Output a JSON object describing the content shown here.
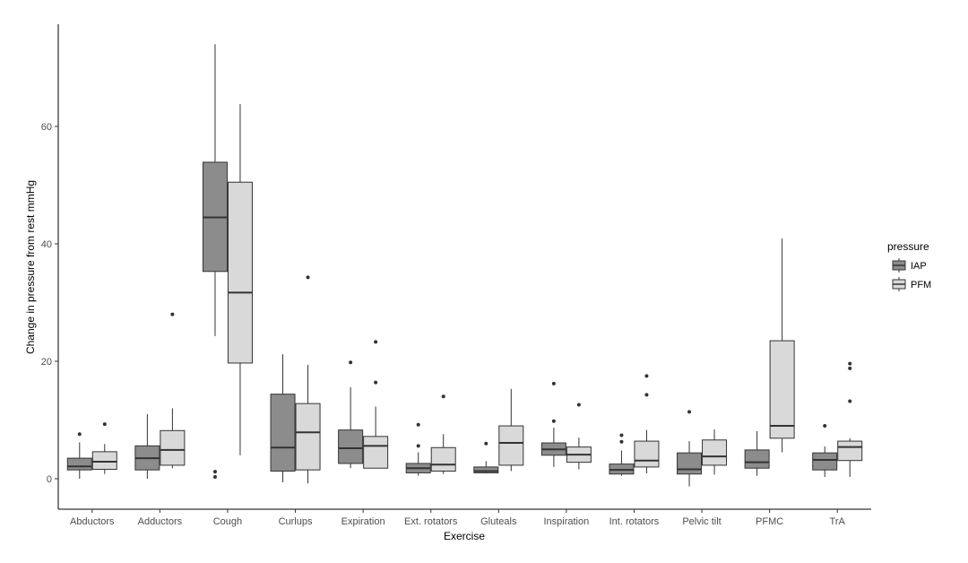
{
  "chart_data": {
    "type": "boxplot",
    "xlabel": "Exercise",
    "ylabel": "Change in pressure from rest mmHg",
    "ylim": [
      -5,
      78
    ],
    "yticks": [
      0,
      20,
      40,
      60
    ],
    "grid": false,
    "legend": {
      "title": "pressure",
      "position": "right"
    },
    "categories": [
      "Abductors",
      "Adductors",
      "Cough",
      "Curlups",
      "Expiration",
      "Ext. rotators",
      "Gluteals",
      "Inspiration",
      "Int. rotators",
      "Pelvic tilt",
      "PFMC",
      "TrA"
    ],
    "series": [
      {
        "name": "IAP",
        "color": "#8c8c8c",
        "boxes": [
          {
            "whisker_low": 0,
            "q1": 1.5,
            "median": 2.1,
            "q3": 3.5,
            "whisker_high": 6.2,
            "outliers": [
              7.6
            ]
          },
          {
            "whisker_low": 0,
            "q1": 1.5,
            "median": 3.5,
            "q3": 5.6,
            "whisker_high": 11.0,
            "outliers": []
          },
          {
            "whisker_low": 24.3,
            "q1": 35.3,
            "median": 44.5,
            "q3": 53.9,
            "whisker_high": 74.0,
            "outliers": [
              1.2,
              0.3
            ]
          },
          {
            "whisker_low": -0.6,
            "q1": 1.3,
            "median": 5.3,
            "q3": 14.4,
            "whisker_high": 21.2,
            "outliers": []
          },
          {
            "whisker_low": 1.8,
            "q1": 2.6,
            "median": 5.2,
            "q3": 8.3,
            "whisker_high": 15.6,
            "outliers": [
              19.8
            ]
          },
          {
            "whisker_low": 0.5,
            "q1": 1.0,
            "median": 1.8,
            "q3": 2.6,
            "whisker_high": 4.5,
            "outliers": [
              5.6,
              9.2
            ]
          },
          {
            "whisker_low": 0.9,
            "q1": 1.0,
            "median": 1.3,
            "q3": 2.0,
            "whisker_high": 3.0,
            "outliers": [
              6.0
            ]
          },
          {
            "whisker_low": 2.0,
            "q1": 4.0,
            "median": 5.0,
            "q3": 6.1,
            "whisker_high": 8.7,
            "outliers": [
              9.8,
              16.2
            ]
          },
          {
            "whisker_low": 0.5,
            "q1": 0.8,
            "median": 1.5,
            "q3": 2.5,
            "whisker_high": 4.8,
            "outliers": [
              6.3,
              7.4
            ]
          },
          {
            "whisker_low": -1.3,
            "q1": 0.8,
            "median": 1.6,
            "q3": 4.4,
            "whisker_high": 6.4,
            "outliers": [
              11.4
            ]
          },
          {
            "whisker_low": 0.5,
            "q1": 1.8,
            "median": 2.8,
            "q3": 4.9,
            "whisker_high": 8.1,
            "outliers": []
          },
          {
            "whisker_low": 0.3,
            "q1": 1.5,
            "median": 3.2,
            "q3": 4.4,
            "whisker_high": 5.5,
            "outliers": [
              9.0
            ]
          }
        ]
      },
      {
        "name": "PFM",
        "color": "#d9d9d9",
        "boxes": [
          {
            "whisker_low": 0.8,
            "q1": 1.6,
            "median": 2.9,
            "q3": 4.6,
            "whisker_high": 5.9,
            "outliers": [
              9.3
            ]
          },
          {
            "whisker_low": 1.8,
            "q1": 2.3,
            "median": 4.9,
            "q3": 8.2,
            "whisker_high": 12.0,
            "outliers": [
              28.0
            ]
          },
          {
            "whisker_low": 4.0,
            "q1": 19.7,
            "median": 31.7,
            "q3": 50.5,
            "whisker_high": 63.8,
            "outliers": []
          },
          {
            "whisker_low": -0.8,
            "q1": 1.5,
            "median": 7.9,
            "q3": 12.8,
            "whisker_high": 19.4,
            "outliers": [
              34.3
            ]
          },
          {
            "whisker_low": 1.8,
            "q1": 1.8,
            "median": 5.6,
            "q3": 7.2,
            "whisker_high": 12.3,
            "outliers": [
              16.4,
              23.3
            ]
          },
          {
            "whisker_low": 0.8,
            "q1": 1.3,
            "median": 2.4,
            "q3": 5.3,
            "whisker_high": 7.6,
            "outliers": [
              14.0
            ]
          },
          {
            "whisker_low": 1.3,
            "q1": 2.3,
            "median": 6.1,
            "q3": 9.0,
            "whisker_high": 15.3,
            "outliers": []
          },
          {
            "whisker_low": 1.6,
            "q1": 2.8,
            "median": 4.1,
            "q3": 5.4,
            "whisker_high": 7.0,
            "outliers": [
              12.6
            ]
          },
          {
            "whisker_low": 0.9,
            "q1": 2.0,
            "median": 3.1,
            "q3": 6.4,
            "whisker_high": 8.3,
            "outliers": [
              14.3,
              17.5
            ]
          },
          {
            "whisker_low": 0.7,
            "q1": 2.3,
            "median": 3.8,
            "q3": 6.6,
            "whisker_high": 8.4,
            "outliers": []
          },
          {
            "whisker_low": 4.5,
            "q1": 6.9,
            "median": 9.0,
            "q3": 23.5,
            "whisker_high": 40.9,
            "outliers": []
          },
          {
            "whisker_low": 0.3,
            "q1": 3.1,
            "median": 5.4,
            "q3": 6.4,
            "whisker_high": 6.9,
            "outliers": [
              13.2,
              18.8,
              19.6
            ]
          }
        ]
      }
    ]
  }
}
